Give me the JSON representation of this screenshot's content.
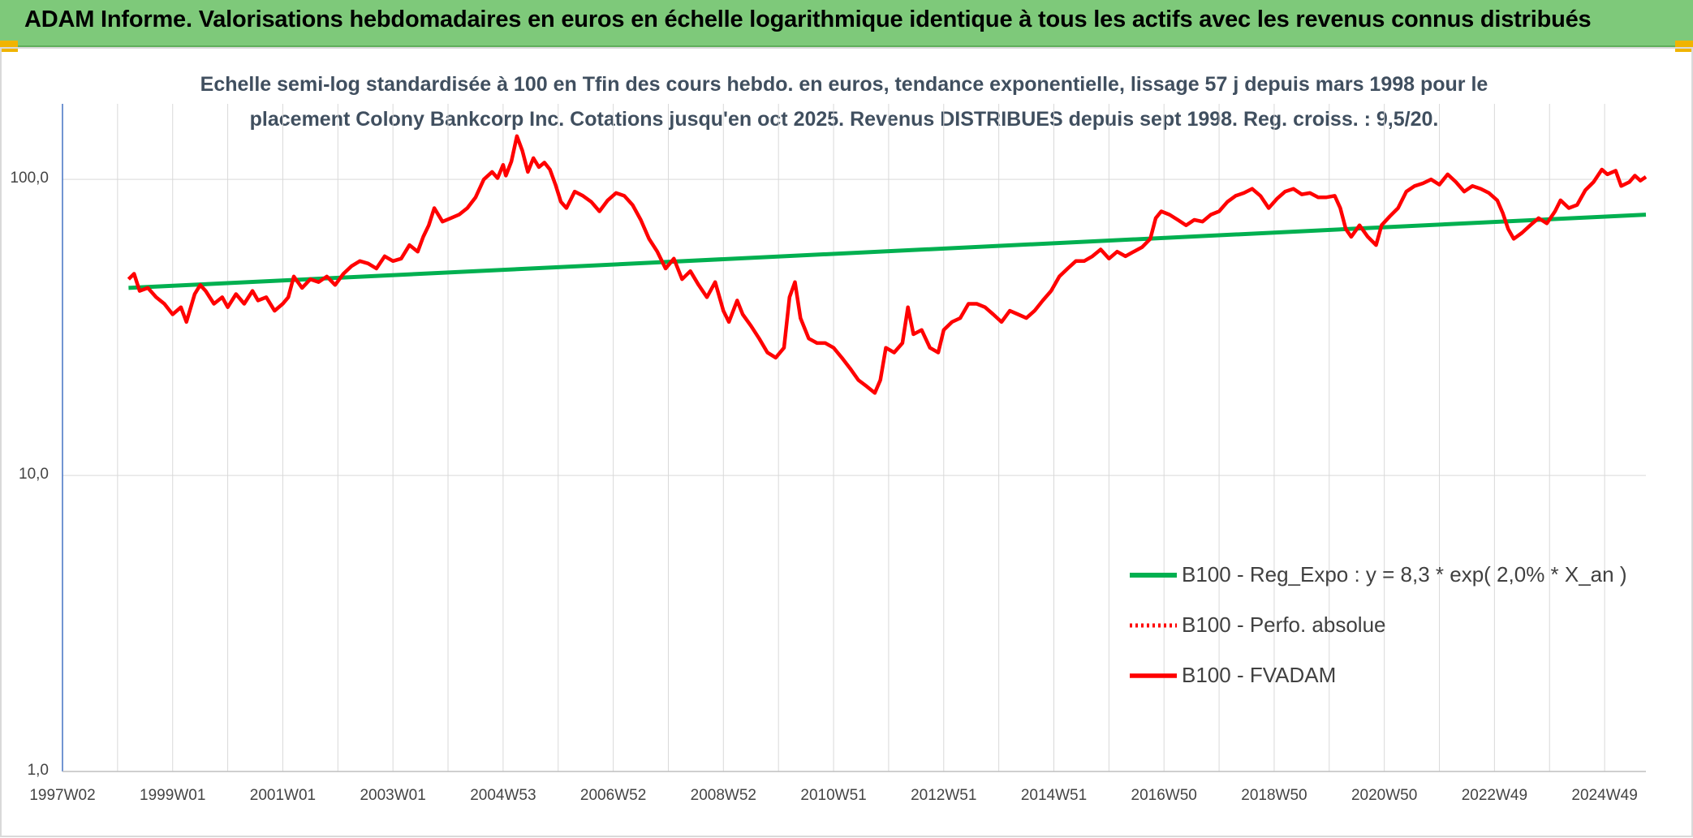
{
  "header": {
    "title": "ADAM Informe. Valorisations hebdomadaires en euros en échelle logarithmique identique à tous les actifs avec les revenus connus distribués"
  },
  "colors": {
    "banner": "#7ec97a",
    "corner_accent": "#f0b400",
    "trend_line": "#00b050",
    "value_line": "#ff0000",
    "grid": "#d9d9d9"
  },
  "chart_data": {
    "type": "line",
    "title_line1": "Echelle semi-log standardisée à 100 en Tfin des cours hebdo. en euros, tendance exponentielle, lissage 57 j depuis mars 1998 pour le",
    "title_line2": "placement Colony Bankcorp Inc. Cotations jusqu'en oct 2025. Revenus DISTRIBUES depuis sept 1998. Reg. croiss. : 9,5/20.",
    "y_scale": "log",
    "ylim": [
      1,
      180
    ],
    "xlim": [
      1997.0,
      2025.75
    ],
    "y_ticks": [
      "1,0",
      "10,0",
      "100,0"
    ],
    "x_ticks": [
      {
        "label": "1997W02",
        "x": 1997.0
      },
      {
        "label": "1999W01",
        "x": 1999.0
      },
      {
        "label": "2001W01",
        "x": 2001.0
      },
      {
        "label": "2003W01",
        "x": 2003.0
      },
      {
        "label": "2004W53",
        "x": 2005.0
      },
      {
        "label": "2006W52",
        "x": 2007.0
      },
      {
        "label": "2008W52",
        "x": 2009.0
      },
      {
        "label": "2010W51",
        "x": 2011.0
      },
      {
        "label": "2012W51",
        "x": 2013.0
      },
      {
        "label": "2014W51",
        "x": 2015.0
      },
      {
        "label": "2016W50",
        "x": 2017.0
      },
      {
        "label": "2018W50",
        "x": 2019.0
      },
      {
        "label": "2020W50",
        "x": 2021.0
      },
      {
        "label": "2022W49",
        "x": 2023.0
      },
      {
        "label": "2024W49",
        "x": 2025.0
      }
    ],
    "grid": "vertical",
    "legend_position": "bottom-right",
    "series": [
      {
        "name": "B100 - Reg_Expo : y = 8,3 * exp( 2,0% *  X_an )",
        "style": "solid-green",
        "points": [
          [
            1998.2,
            43.0
          ],
          [
            2025.75,
            76.0
          ]
        ]
      },
      {
        "name": "B100 - Perfo. absolue",
        "style": "dotted-red",
        "points": []
      },
      {
        "name": "B100 - FVADAM",
        "style": "solid-red",
        "points": [
          [
            1998.2,
            46
          ],
          [
            1998.3,
            48
          ],
          [
            1998.4,
            42
          ],
          [
            1998.55,
            43
          ],
          [
            1998.7,
            40
          ],
          [
            1998.85,
            38
          ],
          [
            1999.0,
            35
          ],
          [
            1999.15,
            37
          ],
          [
            1999.25,
            33
          ],
          [
            1999.4,
            41
          ],
          [
            1999.5,
            44
          ],
          [
            1999.6,
            42
          ],
          [
            1999.75,
            38
          ],
          [
            1999.9,
            40
          ],
          [
            2000.0,
            37
          ],
          [
            2000.15,
            41
          ],
          [
            2000.3,
            38
          ],
          [
            2000.45,
            42
          ],
          [
            2000.55,
            39
          ],
          [
            2000.7,
            40
          ],
          [
            2000.85,
            36
          ],
          [
            2001.0,
            38
          ],
          [
            2001.1,
            40
          ],
          [
            2001.2,
            47
          ],
          [
            2001.35,
            43
          ],
          [
            2001.5,
            46
          ],
          [
            2001.65,
            45
          ],
          [
            2001.8,
            47
          ],
          [
            2001.95,
            44
          ],
          [
            2002.1,
            48
          ],
          [
            2002.25,
            51
          ],
          [
            2002.4,
            53
          ],
          [
            2002.55,
            52
          ],
          [
            2002.7,
            50
          ],
          [
            2002.85,
            55
          ],
          [
            2003.0,
            53
          ],
          [
            2003.15,
            54
          ],
          [
            2003.3,
            60
          ],
          [
            2003.45,
            57
          ],
          [
            2003.55,
            64
          ],
          [
            2003.65,
            70
          ],
          [
            2003.75,
            80
          ],
          [
            2003.9,
            72
          ],
          [
            2004.05,
            74
          ],
          [
            2004.2,
            76
          ],
          [
            2004.35,
            80
          ],
          [
            2004.5,
            87
          ],
          [
            2004.65,
            100
          ],
          [
            2004.8,
            106
          ],
          [
            2004.9,
            101
          ],
          [
            2005.0,
            112
          ],
          [
            2005.05,
            103
          ],
          [
            2005.15,
            115
          ],
          [
            2005.25,
            140
          ],
          [
            2005.35,
            125
          ],
          [
            2005.45,
            106
          ],
          [
            2005.55,
            118
          ],
          [
            2005.65,
            110
          ],
          [
            2005.75,
            114
          ],
          [
            2005.85,
            108
          ],
          [
            2005.95,
            96
          ],
          [
            2006.05,
            84
          ],
          [
            2006.15,
            80
          ],
          [
            2006.3,
            91
          ],
          [
            2006.45,
            88
          ],
          [
            2006.6,
            84
          ],
          [
            2006.75,
            78
          ],
          [
            2006.9,
            85
          ],
          [
            2007.05,
            90
          ],
          [
            2007.2,
            88
          ],
          [
            2007.35,
            82
          ],
          [
            2007.5,
            73
          ],
          [
            2007.65,
            63
          ],
          [
            2007.8,
            57
          ],
          [
            2007.95,
            50
          ],
          [
            2008.1,
            54
          ],
          [
            2008.25,
            46
          ],
          [
            2008.4,
            49
          ],
          [
            2008.55,
            44
          ],
          [
            2008.7,
            40
          ],
          [
            2008.85,
            45
          ],
          [
            2009.0,
            36
          ],
          [
            2009.1,
            33
          ],
          [
            2009.25,
            39
          ],
          [
            2009.35,
            35
          ],
          [
            2009.5,
            32
          ],
          [
            2009.65,
            29
          ],
          [
            2009.8,
            26
          ],
          [
            2009.95,
            25
          ],
          [
            2010.1,
            27
          ],
          [
            2010.2,
            40
          ],
          [
            2010.3,
            45
          ],
          [
            2010.4,
            34
          ],
          [
            2010.55,
            29
          ],
          [
            2010.7,
            28
          ],
          [
            2010.85,
            28
          ],
          [
            2011.0,
            27
          ],
          [
            2011.15,
            25
          ],
          [
            2011.3,
            23
          ],
          [
            2011.45,
            21
          ],
          [
            2011.6,
            20
          ],
          [
            2011.75,
            19
          ],
          [
            2011.85,
            21
          ],
          [
            2011.95,
            27
          ],
          [
            2012.1,
            26
          ],
          [
            2012.25,
            28
          ],
          [
            2012.35,
            37
          ],
          [
            2012.45,
            30
          ],
          [
            2012.6,
            31
          ],
          [
            2012.75,
            27
          ],
          [
            2012.9,
            26
          ],
          [
            2013.0,
            31
          ],
          [
            2013.15,
            33
          ],
          [
            2013.3,
            34
          ],
          [
            2013.45,
            38
          ],
          [
            2013.6,
            38
          ],
          [
            2013.75,
            37
          ],
          [
            2013.9,
            35
          ],
          [
            2014.05,
            33
          ],
          [
            2014.2,
            36
          ],
          [
            2014.35,
            35
          ],
          [
            2014.5,
            34
          ],
          [
            2014.65,
            36
          ],
          [
            2014.8,
            39
          ],
          [
            2014.95,
            42
          ],
          [
            2015.1,
            47
          ],
          [
            2015.25,
            50
          ],
          [
            2015.4,
            53
          ],
          [
            2015.55,
            53
          ],
          [
            2015.7,
            55
          ],
          [
            2015.85,
            58
          ],
          [
            2016.0,
            54
          ],
          [
            2016.15,
            57
          ],
          [
            2016.3,
            55
          ],
          [
            2016.45,
            57
          ],
          [
            2016.6,
            59
          ],
          [
            2016.75,
            63
          ],
          [
            2016.85,
            74
          ],
          [
            2016.95,
            78
          ],
          [
            2017.1,
            76
          ],
          [
            2017.25,
            73
          ],
          [
            2017.4,
            70
          ],
          [
            2017.55,
            73
          ],
          [
            2017.7,
            72
          ],
          [
            2017.85,
            76
          ],
          [
            2018.0,
            78
          ],
          [
            2018.15,
            84
          ],
          [
            2018.3,
            88
          ],
          [
            2018.45,
            90
          ],
          [
            2018.6,
            93
          ],
          [
            2018.75,
            88
          ],
          [
            2018.9,
            80
          ],
          [
            2019.05,
            86
          ],
          [
            2019.2,
            91
          ],
          [
            2019.35,
            93
          ],
          [
            2019.5,
            89
          ],
          [
            2019.65,
            90
          ],
          [
            2019.8,
            87
          ],
          [
            2019.95,
            87
          ],
          [
            2020.1,
            88
          ],
          [
            2020.2,
            80
          ],
          [
            2020.3,
            68
          ],
          [
            2020.4,
            64
          ],
          [
            2020.55,
            70
          ],
          [
            2020.7,
            64
          ],
          [
            2020.85,
            60
          ],
          [
            2020.95,
            70
          ],
          [
            2021.1,
            75
          ],
          [
            2021.25,
            80
          ],
          [
            2021.4,
            91
          ],
          [
            2021.55,
            95
          ],
          [
            2021.7,
            97
          ],
          [
            2021.85,
            100
          ],
          [
            2022.0,
            96
          ],
          [
            2022.15,
            104
          ],
          [
            2022.3,
            98
          ],
          [
            2022.45,
            91
          ],
          [
            2022.6,
            95
          ],
          [
            2022.75,
            93
          ],
          [
            2022.9,
            90
          ],
          [
            2023.05,
            85
          ],
          [
            2023.15,
            77
          ],
          [
            2023.25,
            68
          ],
          [
            2023.35,
            63
          ],
          [
            2023.5,
            66
          ],
          [
            2023.65,
            70
          ],
          [
            2023.8,
            74
          ],
          [
            2023.95,
            71
          ],
          [
            2024.1,
            78
          ],
          [
            2024.2,
            85
          ],
          [
            2024.35,
            80
          ],
          [
            2024.5,
            82
          ],
          [
            2024.65,
            92
          ],
          [
            2024.8,
            98
          ],
          [
            2024.95,
            108
          ],
          [
            2025.05,
            104
          ],
          [
            2025.2,
            107
          ],
          [
            2025.3,
            95
          ],
          [
            2025.45,
            98
          ],
          [
            2025.55,
            103
          ],
          [
            2025.65,
            99
          ],
          [
            2025.75,
            102
          ]
        ]
      }
    ]
  }
}
